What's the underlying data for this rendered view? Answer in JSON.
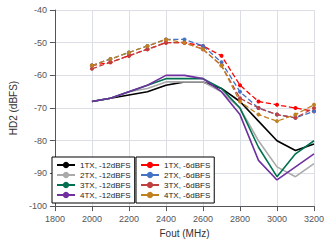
{
  "chart_data": {
    "type": "line",
    "xlabel": "Fout (MHz)",
    "ylabel": "HD2 (dBFS)",
    "xlim": [
      1800,
      3200
    ],
    "ylim": [
      -100,
      -40
    ],
    "xticks": [
      1800,
      2000,
      2200,
      2400,
      2600,
      2800,
      3000,
      3200
    ],
    "yticks": [
      -100,
      -90,
      -80,
      -70,
      -60,
      -50,
      -40
    ],
    "grid": true,
    "legend": "lower left",
    "x": [
      2000,
      2100,
      2200,
      2300,
      2400,
      2500,
      2600,
      2700,
      2800,
      2900,
      3000,
      3100,
      3200
    ],
    "series": [
      {
        "name": "1TX, -12dBFS",
        "color": "#000000",
        "line_style": "solid",
        "marker": "none",
        "values": [
          -68,
          -67,
          -66,
          -65,
          -63,
          -62,
          -62,
          -64,
          -68,
          -74,
          -80,
          -83,
          -81
        ]
      },
      {
        "name": "1TX, -6dBFS",
        "color": "#ff0000",
        "line_style": "dashed",
        "marker": "circle",
        "values": [
          -57,
          -56,
          -54,
          -52,
          -50,
          -50,
          -51,
          -54,
          -63,
          -68,
          -69,
          -70,
          -71
        ]
      },
      {
        "name": "2TX, -12dBFS",
        "color": "#aaaaaa",
        "line_style": "solid",
        "marker": "none",
        "values": [
          -68,
          -67,
          -65,
          -64,
          -62,
          -62,
          -62,
          -65,
          -70,
          -80,
          -88,
          -91,
          -87
        ]
      },
      {
        "name": "2TX, -6dBFS",
        "color": "#4472c4",
        "line_style": "dashed",
        "marker": "circle",
        "values": [
          -57,
          -55,
          -53,
          -51,
          -49,
          -49,
          -51,
          -56,
          -65,
          -70,
          -72,
          -73,
          -71
        ]
      },
      {
        "name": "3TX, -12dBFS",
        "color": "#007050",
        "line_style": "solid",
        "marker": "none",
        "values": [
          -68,
          -67,
          -65,
          -63,
          -61,
          -61,
          -61,
          -64,
          -70,
          -82,
          -91,
          -84,
          -80
        ]
      },
      {
        "name": "3TX, -6dBFS",
        "color": "#c04040",
        "line_style": "dashed",
        "marker": "circle",
        "values": [
          -58,
          -56,
          -54,
          -52,
          -50,
          -50,
          -52,
          -57,
          -67,
          -70,
          -72,
          -73,
          -70
        ]
      },
      {
        "name": "4TX, -12dBFS",
        "color": "#7030a0",
        "line_style": "solid",
        "marker": "none",
        "values": [
          -68,
          -67,
          -65,
          -63,
          -60,
          -60,
          -61,
          -65,
          -72,
          -86,
          -92,
          -88,
          -84
        ]
      },
      {
        "name": "4TX, -6dBFS",
        "color": "#c08020",
        "line_style": "dashed",
        "marker": "circle",
        "values": [
          -57,
          -55,
          -53,
          -51,
          -49,
          -50,
          -52,
          -57,
          -68,
          -72,
          -74,
          -72,
          -69
        ]
      }
    ]
  }
}
